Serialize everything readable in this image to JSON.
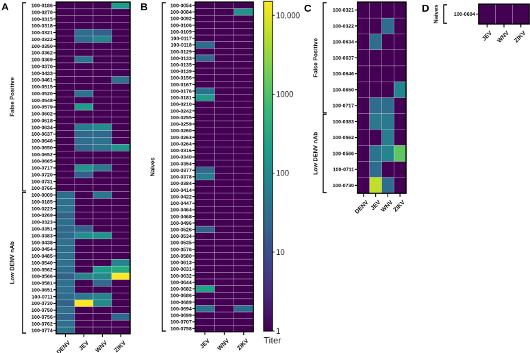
{
  "chart_data": [
    {
      "panel": "A",
      "type": "heatmap",
      "columns": [
        "DENV",
        "JEV",
        "WNV",
        "ZIKV"
      ],
      "groups": [
        {
          "label": "False Positive",
          "rows": [
            "100-0186",
            "100-0270",
            "100-0315",
            "100-0318",
            "100-0321",
            "100-0322",
            "100-0350",
            "100-0362",
            "100-0369",
            "100-0370",
            "100-0433",
            "100-0461",
            "100-0515",
            "100-0520",
            "100-0548",
            "100-0579",
            "100-0602",
            "100-0618",
            "100-0634",
            "100-0637",
            "100-0646",
            "100-0650",
            "100-0652",
            "100-0665",
            "100-0717",
            "100-0720",
            "100-0731",
            "100-0766"
          ],
          "values": [
            [
              1,
              1,
              1,
              200
            ],
            [
              1,
              1,
              1,
              1
            ],
            [
              1,
              1,
              1,
              1
            ],
            [
              1,
              1,
              1,
              1
            ],
            [
              1,
              30,
              18,
              1
            ],
            [
              1,
              30,
              80,
              1
            ],
            [
              1,
              1,
              1,
              1
            ],
            [
              1,
              1,
              1,
              1
            ],
            [
              1,
              40,
              1,
              1
            ],
            [
              1,
              1,
              1,
              1
            ],
            [
              1,
              1,
              1,
              1
            ],
            [
              1,
              1,
              1,
              40
            ],
            [
              1,
              1,
              1,
              1
            ],
            [
              1,
              40,
              1,
              1
            ],
            [
              1,
              1,
              1,
              1
            ],
            [
              1,
              200,
              1,
              1
            ],
            [
              1,
              1,
              1,
              1
            ],
            [
              1,
              1,
              1,
              1
            ],
            [
              1,
              60,
              100,
              1
            ],
            [
              1,
              25,
              25,
              1
            ],
            [
              1,
              30,
              40,
              1
            ],
            [
              1,
              25,
              40,
              150
            ],
            [
              1,
              1,
              1,
              1
            ],
            [
              1,
              1,
              1,
              1
            ],
            [
              1,
              150,
              50,
              1
            ],
            [
              1,
              18,
              1,
              1
            ],
            [
              1,
              1,
              1,
              1
            ],
            [
              1,
              1,
              1,
              1
            ]
          ]
        },
        {
          "label": "Low DENV nAb",
          "rows": [
            "100-0009",
            "100-0185",
            "100-0223",
            "100-0269",
            "100-0323",
            "100-0351",
            "100-0383",
            "100-0438",
            "100-0454",
            "100-0485",
            "100-0540",
            "100-0562",
            "100-0566",
            "100-0581",
            "100-0651",
            "100-0711",
            "100-0730",
            "100-0750",
            "100-0756",
            "100-0762",
            "100-0774"
          ],
          "values": [
            [
              30,
              1,
              50,
              1
            ],
            [
              35,
              1,
              1,
              1
            ],
            [
              40,
              1,
              1,
              1
            ],
            [
              20,
              1,
              1,
              1
            ],
            [
              30,
              1,
              1,
              1
            ],
            [
              25,
              20,
              1,
              1
            ],
            [
              25,
              120,
              150,
              1
            ],
            [
              35,
              1,
              1,
              1
            ],
            [
              30,
              1,
              1,
              1
            ],
            [
              35,
              1,
              1,
              1
            ],
            [
              35,
              1,
              1,
              80
            ],
            [
              30,
              1,
              200,
              350
            ],
            [
              20,
              80,
              100,
              15000
            ],
            [
              35,
              1,
              25,
              1
            ],
            [
              35,
              1,
              1,
              1
            ],
            [
              30,
              50,
              80,
              1
            ],
            [
              20,
              15000,
              100,
              1
            ],
            [
              35,
              1,
              1,
              1
            ],
            [
              20,
              1,
              1,
              25
            ],
            [
              35,
              1,
              1,
              1
            ],
            [
              35,
              1,
              1,
              1
            ]
          ]
        }
      ]
    },
    {
      "panel": "B",
      "type": "heatmap",
      "columns": [
        "JEV",
        "WNV",
        "ZIKV"
      ],
      "groups": [
        {
          "label": "Naives",
          "rows": [
            "100-0054",
            "100-0084",
            "100-0092",
            "100-0106",
            "100-0109",
            "100-0117",
            "100-0118",
            "100-0129",
            "100-0133",
            "100-0135",
            "100-0139",
            "100-0156",
            "100-0167",
            "100-0176",
            "100-0181",
            "100-0210",
            "100-0242",
            "100-0255",
            "100-0259",
            "100-0260",
            "100-0263",
            "100-0264",
            "100-0316",
            "100-0340",
            "100-0354",
            "100-0377",
            "100-0378",
            "100-0384",
            "100-0414",
            "100-0422",
            "100-0447",
            "100-0464",
            "100-0468",
            "100-0496",
            "100-0526",
            "100-0534",
            "100-0535",
            "100-0576",
            "100-0580",
            "100-0613",
            "100-0631",
            "100-0632",
            "100-0644",
            "100-0682",
            "100-0686",
            "100-0689",
            "100-0694",
            "100-0699",
            "100-0707",
            "100-0758"
          ],
          "values": [
            [
              1,
              1,
              1
            ],
            [
              1,
              1,
              150
            ],
            [
              1,
              1,
              1
            ],
            [
              1,
              1,
              1
            ],
            [
              1,
              1,
              1
            ],
            [
              1,
              1,
              1
            ],
            [
              30,
              1,
              1
            ],
            [
              1,
              1,
              1
            ],
            [
              25,
              1,
              1
            ],
            [
              1,
              1,
              1
            ],
            [
              1,
              1,
              1
            ],
            [
              1,
              1,
              1
            ],
            [
              1,
              1,
              1
            ],
            [
              35,
              1,
              1
            ],
            [
              200,
              1,
              1
            ],
            [
              1,
              1,
              1
            ],
            [
              1,
              1,
              1
            ],
            [
              1,
              1,
              1
            ],
            [
              1,
              1,
              1
            ],
            [
              1,
              1,
              1
            ],
            [
              1,
              1,
              1
            ],
            [
              1,
              1,
              1
            ],
            [
              1,
              1,
              1
            ],
            [
              1,
              1,
              1
            ],
            [
              1,
              1,
              1
            ],
            [
              25,
              1,
              1
            ],
            [
              60,
              1,
              1
            ],
            [
              1,
              1,
              1
            ],
            [
              1,
              1,
              1
            ],
            [
              1,
              1,
              1
            ],
            [
              1,
              1,
              1
            ],
            [
              1,
              1,
              1
            ],
            [
              1,
              1,
              1
            ],
            [
              1,
              1,
              1
            ],
            [
              20,
              1,
              1
            ],
            [
              1,
              1,
              1
            ],
            [
              1,
              1,
              1
            ],
            [
              1,
              1,
              1
            ],
            [
              1,
              1,
              1
            ],
            [
              1,
              1,
              1
            ],
            [
              1,
              1,
              1
            ],
            [
              1,
              1,
              1
            ],
            [
              1,
              1,
              1
            ],
            [
              250,
              1,
              1
            ],
            [
              1,
              1,
              1
            ],
            [
              1,
              1,
              1
            ],
            [
              40,
              1,
              30
            ],
            [
              1,
              1,
              1
            ],
            [
              1,
              1,
              1
            ],
            [
              1,
              1,
              1
            ]
          ]
        }
      ]
    },
    {
      "panel": "C",
      "type": "heatmap",
      "columns": [
        "DENV",
        "JEV",
        "WNV",
        "ZIKV"
      ],
      "groups": [
        {
          "label": "False Positive",
          "rows": [
            "100-0321",
            "100-0322",
            "100-0634",
            "100-0637",
            "100-0646",
            "100-0650",
            "100-0717"
          ],
          "values": [
            [
              1,
              1,
              1,
              1
            ],
            [
              1,
              1,
              30,
              1
            ],
            [
              1,
              30,
              1,
              1
            ],
            [
              1,
              1,
              1,
              1
            ],
            [
              1,
              1,
              1,
              1
            ],
            [
              1,
              1,
              1,
              80
            ],
            [
              1,
              30,
              30,
              1
            ]
          ]
        },
        {
          "label": "Low DENV nAb",
          "rows": [
            "100-0383",
            "100-0562",
            "100-0566",
            "100-0711",
            "100-0730"
          ],
          "values": [
            [
              1,
              50,
              50,
              1
            ],
            [
              1,
              1,
              60,
              1
            ],
            [
              1,
              40,
              80,
              1300
            ],
            [
              1,
              30,
              1,
              1
            ],
            [
              1,
              6000,
              30,
              1
            ]
          ]
        }
      ]
    },
    {
      "panel": "D",
      "type": "heatmap",
      "columns": [
        "JEV",
        "WNV",
        "ZIKV"
      ],
      "groups": [
        {
          "label": "Naives",
          "rows": [
            "100-0694"
          ],
          "values": [
            [
              1,
              1,
              1
            ]
          ]
        }
      ]
    }
  ],
  "colorbar": {
    "title": "Titer",
    "scale": "log",
    "range": [
      1,
      15000
    ],
    "ticks": [
      {
        "value": 1,
        "label": "1"
      },
      {
        "value": 10,
        "label": "10"
      },
      {
        "value": 100,
        "label": "100"
      },
      {
        "value": 1000,
        "label": "1000"
      },
      {
        "value": 10000,
        "label": "10,000"
      }
    ],
    "colormap": [
      "#440154",
      "#482878",
      "#3e4989",
      "#31688e",
      "#26828e",
      "#1f9e89",
      "#35b779",
      "#6ece58",
      "#b5de2b",
      "#fde725"
    ]
  }
}
